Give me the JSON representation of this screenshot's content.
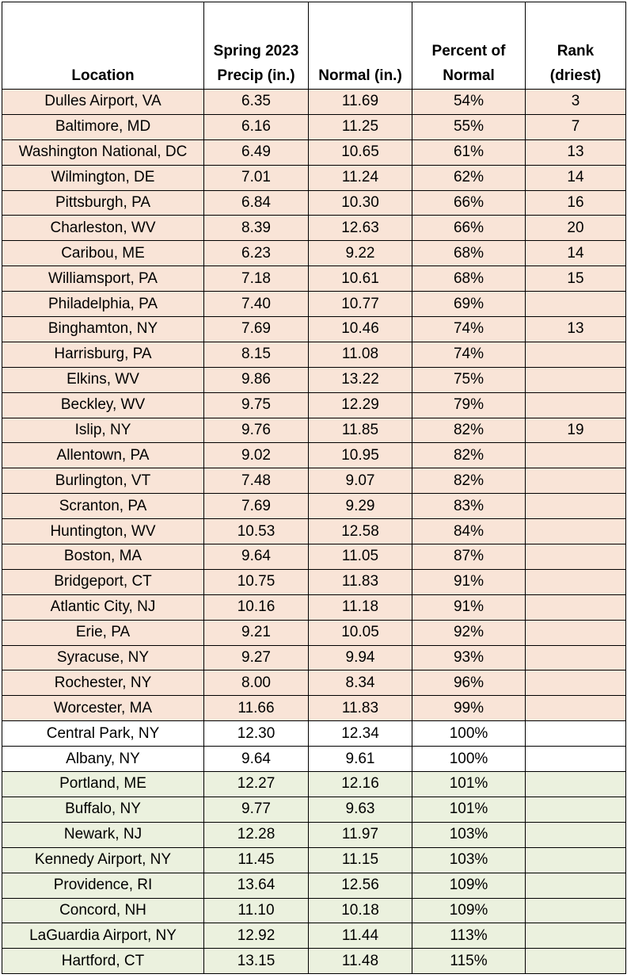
{
  "headers": {
    "location": "Location",
    "precip_line1": "Spring 2023",
    "precip_line2": "Precip (in.)",
    "normal": "Normal (in.)",
    "percent_line1": "Percent of",
    "percent_line2": "Normal",
    "rank_line1": "Rank",
    "rank_line2": "(driest)"
  },
  "colors": {
    "below_normal_fill": "#f9e4d7",
    "normal_fill": "#ffffff",
    "above_normal_fill": "#ebf1de"
  },
  "rows": [
    {
      "location": "Dulles Airport, VA",
      "precip": "6.35",
      "normal": "11.69",
      "percent": "54%",
      "rank": "3",
      "band": "dry"
    },
    {
      "location": "Baltimore, MD",
      "precip": "6.16",
      "normal": "11.25",
      "percent": "55%",
      "rank": "7",
      "band": "dry"
    },
    {
      "location": "Washington National, DC",
      "precip": "6.49",
      "normal": "10.65",
      "percent": "61%",
      "rank": "13",
      "band": "dry"
    },
    {
      "location": "Wilmington, DE",
      "precip": "7.01",
      "normal": "11.24",
      "percent": "62%",
      "rank": "14",
      "band": "dry"
    },
    {
      "location": "Pittsburgh, PA",
      "precip": "6.84",
      "normal": "10.30",
      "percent": "66%",
      "rank": "16",
      "band": "dry"
    },
    {
      "location": "Charleston, WV",
      "precip": "8.39",
      "normal": "12.63",
      "percent": "66%",
      "rank": "20",
      "band": "dry"
    },
    {
      "location": "Caribou, ME",
      "precip": "6.23",
      "normal": "9.22",
      "percent": "68%",
      "rank": "14",
      "band": "dry"
    },
    {
      "location": "Williamsport, PA",
      "precip": "7.18",
      "normal": "10.61",
      "percent": "68%",
      "rank": "15",
      "band": "dry"
    },
    {
      "location": "Philadelphia, PA",
      "precip": "7.40",
      "normal": "10.77",
      "percent": "69%",
      "rank": "",
      "band": "dry"
    },
    {
      "location": "Binghamton, NY",
      "precip": "7.69",
      "normal": "10.46",
      "percent": "74%",
      "rank": "13",
      "band": "dry"
    },
    {
      "location": "Harrisburg, PA",
      "precip": "8.15",
      "normal": "11.08",
      "percent": "74%",
      "rank": "",
      "band": "dry"
    },
    {
      "location": "Elkins, WV",
      "precip": "9.86",
      "normal": "13.22",
      "percent": "75%",
      "rank": "",
      "band": "dry"
    },
    {
      "location": "Beckley, WV",
      "precip": "9.75",
      "normal": "12.29",
      "percent": "79%",
      "rank": "",
      "band": "dry"
    },
    {
      "location": "Islip, NY",
      "precip": "9.76",
      "normal": "11.85",
      "percent": "82%",
      "rank": "19",
      "band": "dry"
    },
    {
      "location": "Allentown, PA",
      "precip": "9.02",
      "normal": "10.95",
      "percent": "82%",
      "rank": "",
      "band": "dry"
    },
    {
      "location": "Burlington, VT",
      "precip": "7.48",
      "normal": "9.07",
      "percent": "82%",
      "rank": "",
      "band": "dry"
    },
    {
      "location": "Scranton, PA",
      "precip": "7.69",
      "normal": "9.29",
      "percent": "83%",
      "rank": "",
      "band": "dry"
    },
    {
      "location": "Huntington, WV",
      "precip": "10.53",
      "normal": "12.58",
      "percent": "84%",
      "rank": "",
      "band": "dry"
    },
    {
      "location": "Boston, MA",
      "precip": "9.64",
      "normal": "11.05",
      "percent": "87%",
      "rank": "",
      "band": "dry"
    },
    {
      "location": "Bridgeport, CT",
      "precip": "10.75",
      "normal": "11.83",
      "percent": "91%",
      "rank": "",
      "band": "dry"
    },
    {
      "location": "Atlantic City, NJ",
      "precip": "10.16",
      "normal": "11.18",
      "percent": "91%",
      "rank": "",
      "band": "dry"
    },
    {
      "location": "Erie, PA",
      "precip": "9.21",
      "normal": "10.05",
      "percent": "92%",
      "rank": "",
      "band": "dry"
    },
    {
      "location": "Syracuse, NY",
      "precip": "9.27",
      "normal": "9.94",
      "percent": "93%",
      "rank": "",
      "band": "dry"
    },
    {
      "location": "Rochester, NY",
      "precip": "8.00",
      "normal": "8.34",
      "percent": "96%",
      "rank": "",
      "band": "dry"
    },
    {
      "location": "Worcester, MA",
      "precip": "11.66",
      "normal": "11.83",
      "percent": "99%",
      "rank": "",
      "band": "dry"
    },
    {
      "location": "Central Park, NY",
      "precip": "12.30",
      "normal": "12.34",
      "percent": "100%",
      "rank": "",
      "band": "normal"
    },
    {
      "location": "Albany, NY",
      "precip": "9.64",
      "normal": "9.61",
      "percent": "100%",
      "rank": "",
      "band": "normal"
    },
    {
      "location": "Portland, ME",
      "precip": "12.27",
      "normal": "12.16",
      "percent": "101%",
      "rank": "",
      "band": "wet"
    },
    {
      "location": "Buffalo, NY",
      "precip": "9.77",
      "normal": "9.63",
      "percent": "101%",
      "rank": "",
      "band": "wet"
    },
    {
      "location": "Newark, NJ",
      "precip": "12.28",
      "normal": "11.97",
      "percent": "103%",
      "rank": "",
      "band": "wet"
    },
    {
      "location": "Kennedy Airport, NY",
      "precip": "11.45",
      "normal": "11.15",
      "percent": "103%",
      "rank": "",
      "band": "wet"
    },
    {
      "location": "Providence, RI",
      "precip": "13.64",
      "normal": "12.56",
      "percent": "109%",
      "rank": "",
      "band": "wet"
    },
    {
      "location": "Concord, NH",
      "precip": "11.10",
      "normal": "10.18",
      "percent": "109%",
      "rank": "",
      "band": "wet"
    },
    {
      "location": "LaGuardia Airport, NY",
      "precip": "12.92",
      "normal": "11.44",
      "percent": "113%",
      "rank": "",
      "band": "wet"
    },
    {
      "location": "Hartford, CT",
      "precip": "13.15",
      "normal": "11.48",
      "percent": "115%",
      "rank": "",
      "band": "wet"
    }
  ]
}
